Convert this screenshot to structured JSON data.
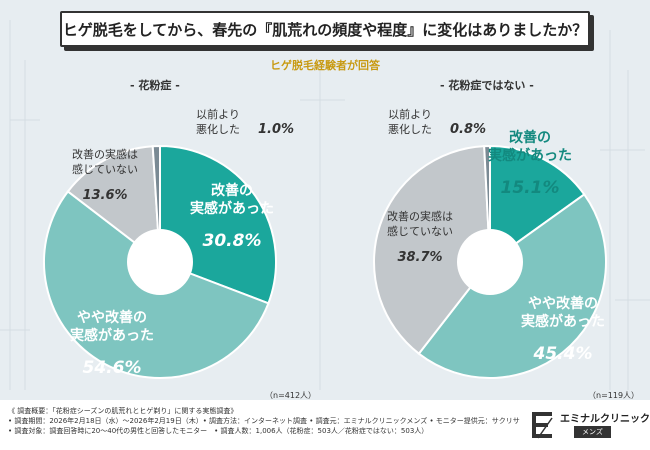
{
  "title": "ヒゲ脱毛をしてから、春先の『肌荒れの頻度や程度』に変化はありましたか？",
  "subtitle": "ヒゲ脱毛経験者が回答",
  "colors": {
    "improved": "#1ba79c",
    "somewhat_improved": "#7ec5c0",
    "no_change": "#c2c7cb",
    "worsened": "#7a8a94",
    "label_dark_teal": "#13897f",
    "group1_label": "#e6863c",
    "group2_label": "#7f5aa8"
  },
  "chart_data": [
    {
      "type": "pie",
      "group_label": "- 花粉症 -",
      "n_label": "（n=412人）",
      "slices": [
        {
          "label_line1": "改善の",
          "label_line2": "実感があった",
          "value": 30.8,
          "value_text": "30.8%",
          "color_key": "improved"
        },
        {
          "label_line1": "やや改善の",
          "label_line2": "実感があった",
          "value": 54.6,
          "value_text": "54.6%",
          "color_key": "somewhat_improved"
        },
        {
          "label_line1": "改善の実感は",
          "label_line2": "感じていない",
          "value": 13.6,
          "value_text": "13.6%",
          "color_key": "no_change"
        },
        {
          "label_line1": "以前より",
          "label_line2": "悪化した",
          "value": 1.0,
          "value_text": "1.0%",
          "color_key": "worsened"
        }
      ]
    },
    {
      "type": "pie",
      "group_label": "- 花粉症ではない -",
      "n_label": "（n=119人）",
      "slices": [
        {
          "label_line1": "改善の",
          "label_line2": "実感があった",
          "value": 15.1,
          "value_text": "15.1%",
          "color_key": "improved"
        },
        {
          "label_line1": "やや改善の",
          "label_line2": "実感があった",
          "value": 45.4,
          "value_text": "45.4%",
          "color_key": "somewhat_improved"
        },
        {
          "label_line1": "改善の実感は",
          "label_line2": "感じていない",
          "value": 38.7,
          "value_text": "38.7%",
          "color_key": "no_change"
        },
        {
          "label_line1": "以前より",
          "label_line2": "悪化した",
          "value": 0.8,
          "value_text": "0.8%",
          "color_key": "worsened"
        }
      ]
    }
  ],
  "footer": {
    "line1": "《 調査概要：「花粉症シーズンの肌荒れとヒゲ剃り」に関する実態調査》",
    "line2": "• 調査期間：2026年2月18日（水）〜2026年2月19日（木）• 調査方法：インターネット調査 • 調査元：エミナルクリニックメンズ • モニター提供元：サクリサ",
    "line3": "• 調査対象：調査回答時に20〜40代の男性と回答したモニター　• 調査人数：1,006人（花粉症：503人／花粉症ではない：503人）",
    "logo_name": "エミナルクリニック",
    "logo_tag": "メンズ"
  }
}
